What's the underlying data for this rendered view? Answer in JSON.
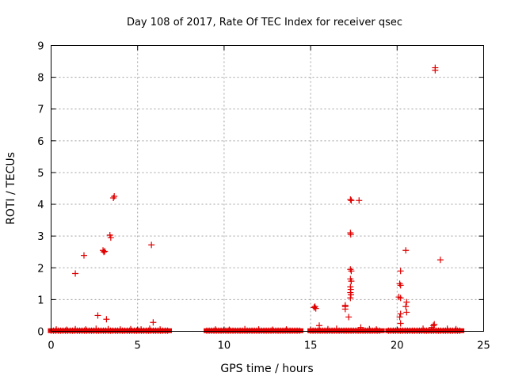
{
  "chart_data": {
    "type": "scatter",
    "title": "Day 108 of 2017, Rate Of TEC Index for receiver qsec",
    "xlabel": "GPS time / hours",
    "ylabel": "ROTI / TECUs",
    "xlim": [
      0,
      25
    ],
    "ylim": [
      0,
      9
    ],
    "xticks": [
      "0",
      "5",
      "10",
      "15",
      "20",
      "25"
    ],
    "yticks": [
      "0",
      "1",
      "2",
      "3",
      "4",
      "5",
      "6",
      "7",
      "8",
      "9"
    ],
    "grid": true,
    "legend": "none",
    "marker": "plus",
    "color": "#e00000",
    "baseline_segments": [
      {
        "x_start": 0.0,
        "x_end": 6.8,
        "y": 0.02
      },
      {
        "x_start": 9.0,
        "x_end": 14.4,
        "y": 0.02
      },
      {
        "x_start": 15.0,
        "x_end": 19.1,
        "y": 0.02
      },
      {
        "x_start": 19.5,
        "x_end": 23.7,
        "y": 0.02
      }
    ],
    "points": [
      [
        0.3,
        0.06
      ],
      [
        0.9,
        0.05
      ],
      [
        1.4,
        0.07
      ],
      [
        2.0,
        0.06
      ],
      [
        2.6,
        0.08
      ],
      [
        3.3,
        0.07
      ],
      [
        4.0,
        0.06
      ],
      [
        4.6,
        0.07
      ],
      [
        5.2,
        0.06
      ],
      [
        5.7,
        0.08
      ],
      [
        6.3,
        0.06
      ],
      [
        1.4,
        1.82
      ],
      [
        1.9,
        2.39
      ],
      [
        2.7,
        0.5
      ],
      [
        3.0,
        2.55
      ],
      [
        3.05,
        2.5
      ],
      [
        3.1,
        2.52
      ],
      [
        3.2,
        0.38
      ],
      [
        3.4,
        3.03
      ],
      [
        3.45,
        2.95
      ],
      [
        3.6,
        4.2
      ],
      [
        3.65,
        4.25
      ],
      [
        5.8,
        2.72
      ],
      [
        5.9,
        0.28
      ],
      [
        9.5,
        0.06
      ],
      [
        10.3,
        0.05
      ],
      [
        11.2,
        0.07
      ],
      [
        12.0,
        0.06
      ],
      [
        12.8,
        0.05
      ],
      [
        13.6,
        0.06
      ],
      [
        15.2,
        0.75
      ],
      [
        15.25,
        0.78
      ],
      [
        15.3,
        0.72
      ],
      [
        15.5,
        0.18
      ],
      [
        16.0,
        0.07
      ],
      [
        16.5,
        0.08
      ],
      [
        17.0,
        0.82
      ],
      [
        17.0,
        0.78
      ],
      [
        17.0,
        0.7
      ],
      [
        17.2,
        0.45
      ],
      [
        17.3,
        4.15
      ],
      [
        17.35,
        4.12
      ],
      [
        17.3,
        3.1
      ],
      [
        17.32,
        3.05
      ],
      [
        17.3,
        1.95
      ],
      [
        17.35,
        1.9
      ],
      [
        17.3,
        1.65
      ],
      [
        17.35,
        1.58
      ],
      [
        17.3,
        1.4
      ],
      [
        17.32,
        1.32
      ],
      [
        17.3,
        1.22
      ],
      [
        17.33,
        1.15
      ],
      [
        17.3,
        1.05
      ],
      [
        17.8,
        4.12
      ],
      [
        17.9,
        0.12
      ],
      [
        18.4,
        0.07
      ],
      [
        18.8,
        0.06
      ],
      [
        20.2,
        1.9
      ],
      [
        20.15,
        1.5
      ],
      [
        20.2,
        1.45
      ],
      [
        20.1,
        1.08
      ],
      [
        20.2,
        1.05
      ],
      [
        20.2,
        0.55
      ],
      [
        20.15,
        0.45
      ],
      [
        20.2,
        0.25
      ],
      [
        20.5,
        2.55
      ],
      [
        20.55,
        0.92
      ],
      [
        20.5,
        0.78
      ],
      [
        20.55,
        0.6
      ],
      [
        21.5,
        0.08
      ],
      [
        22.0,
        0.12
      ],
      [
        22.1,
        0.18
      ],
      [
        22.15,
        0.22
      ],
      [
        22.2,
        8.3
      ],
      [
        22.2,
        8.22
      ],
      [
        22.5,
        2.25
      ],
      [
        22.9,
        0.08
      ],
      [
        23.4,
        0.07
      ]
    ]
  }
}
